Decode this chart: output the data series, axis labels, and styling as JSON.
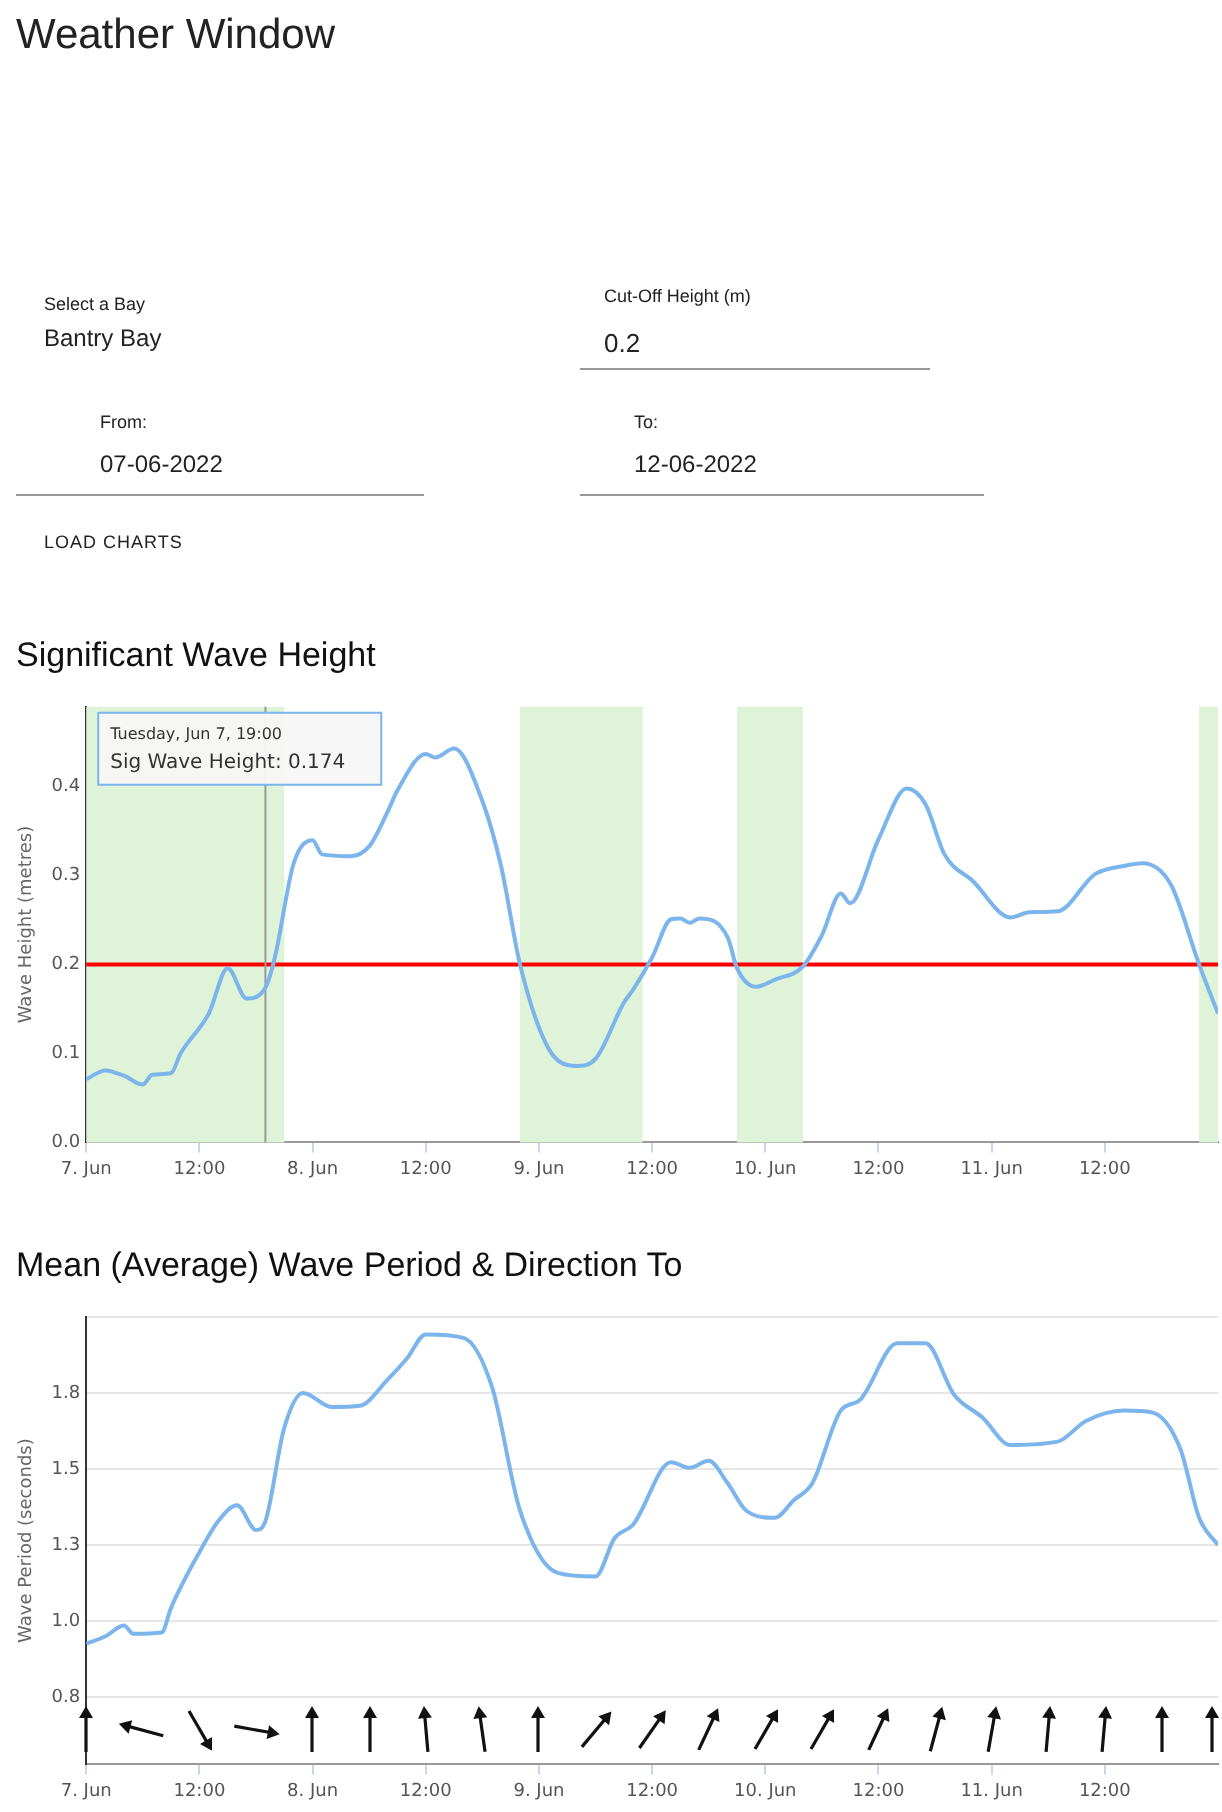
{
  "chart_data": [
    {
      "type": "other",
      "title": "Weather Window",
      "annotations": [
        "Select a Bay",
        "Bantry Bay",
        "Cut-Off Height (m)",
        "0.2",
        "From:",
        "07-06-2022",
        "To:",
        "12-06-2022",
        "LOAD CHARTS"
      ]
    },
    {
      "type": "line",
      "title": "Significant Wave Height",
      "ylabel": "Wave Height (metres)",
      "x": [
        "2022-06-07T00:00",
        "2022-06-07T02:00",
        "2022-06-07T04:00",
        "2022-06-07T06:00",
        "2022-06-07T07:00",
        "2022-06-07T09:00",
        "2022-06-07T10:00",
        "2022-06-07T13:00",
        "2022-06-07T15:00",
        "2022-06-07T17:00",
        "2022-06-07T19:00",
        "2022-06-07T20:00",
        "2022-06-07T22:00",
        "2022-06-08T00:00",
        "2022-06-08T01:00",
        "2022-06-08T04:00",
        "2022-06-08T06:00",
        "2022-06-08T08:00",
        "2022-06-08T09:00",
        "2022-06-08T12:00",
        "2022-06-08T13:00",
        "2022-06-08T15:00",
        "2022-06-08T18:00",
        "2022-06-08T20:00",
        "2022-06-08T22:00",
        "2022-06-09T01:00",
        "2022-06-09T04:00",
        "2022-06-09T06:00",
        "2022-06-09T09:00",
        "2022-06-09T10:00",
        "2022-06-09T12:00",
        "2022-06-09T14:00",
        "2022-06-09T15:00",
        "2022-06-09T16:00",
        "2022-06-09T17:00",
        "2022-06-09T20:00",
        "2022-06-09T21:00",
        "2022-06-09T23:00",
        "2022-06-10T01:00",
        "2022-06-10T04:00",
        "2022-06-10T06:00",
        "2022-06-10T08:00",
        "2022-06-10T09:00",
        "2022-06-10T12:00",
        "2022-06-10T15:00",
        "2022-06-10T17:00",
        "2022-06-10T19:00",
        "2022-06-10T22:00",
        "2022-06-11T02:00",
        "2022-06-11T04:00",
        "2022-06-11T07:00",
        "2022-06-11T11:00",
        "2022-06-11T14:00",
        "2022-06-11T16:00",
        "2022-06-11T19:00",
        "2022-06-11T22:00",
        "2022-06-12T00:00"
      ],
      "series": [
        {
          "color": "#7cb5ec",
          "values": [
            0.071,
            0.081,
            0.075,
            0.065,
            0.076,
            0.078,
            0.1,
            0.145,
            0.196,
            0.162,
            0.174,
            0.208,
            0.314,
            0.34,
            0.324,
            0.322,
            0.333,
            0.373,
            0.396,
            0.437,
            0.433,
            0.443,
            0.384,
            0.31,
            0.2,
            0.106,
            0.086,
            0.094,
            0.157,
            0.172,
            0.208,
            0.251,
            0.252,
            0.247,
            0.252,
            0.231,
            0.196,
            0.175,
            0.183,
            0.198,
            0.233,
            0.28,
            0.269,
            0.341,
            0.398,
            0.38,
            0.324,
            0.294,
            0.253,
            0.259,
            0.26,
            0.302,
            0.311,
            0.314,
            0.29,
            0.2,
            0.145
          ]
        }
      ],
      "xlim": [
        "2022-06-07T00:00",
        "2022-06-12T00:00"
      ],
      "xticks": [
        {
          "value": "2022-06-07",
          "label": "7. Jun"
        },
        {
          "value": "2022-06-07T12:00",
          "label": "12:00"
        },
        {
          "value": "2022-06-08",
          "label": "8. Jun"
        },
        {
          "value": "2022-06-08T12:00",
          "label": "12:00"
        },
        {
          "value": "2022-06-09",
          "label": "9. Jun"
        },
        {
          "value": "2022-06-09T12:00",
          "label": "12:00"
        },
        {
          "value": "2022-06-10",
          "label": "10. Jun"
        },
        {
          "value": "2022-06-10T12:00",
          "label": "12:00"
        },
        {
          "value": "2022-06-11",
          "label": "11. Jun"
        },
        {
          "value": "2022-06-11T12:00",
          "label": "12:00"
        }
      ],
      "ylim": [
        0,
        0.49
      ],
      "yticks": [
        {
          "value": 0,
          "label": "0.0"
        },
        0.1,
        0.2,
        0.3,
        0.4
      ],
      "grid": false,
      "bands": [
        {
          "axis": "x",
          "from": "2022-06-07T00:00",
          "to": "2022-06-07T21:00",
          "color": "#dff3d9"
        },
        {
          "axis": "x",
          "from": "2022-06-08T22:00",
          "to": "2022-06-09T11:00",
          "color": "#dff3d9"
        },
        {
          "axis": "x",
          "from": "2022-06-09T21:00",
          "to": "2022-06-10T04:00",
          "color": "#dff3d9"
        },
        {
          "axis": "x",
          "from": "2022-06-11T22:00",
          "to": "2022-06-12T00:00",
          "color": "#dff3d9"
        }
      ],
      "ref_lines": [
        {
          "axis": "y",
          "value": 0.2,
          "color": "#ff0000"
        },
        {
          "axis": "x",
          "value": "2022-06-07T19:00",
          "color": "#999999"
        }
      ],
      "annotations": [
        "Tuesday, Jun 7, 19:00",
        "Sig Wave Height: 0.174"
      ]
    },
    {
      "type": "line",
      "title": "Mean (Average) Wave Period & Direction To",
      "ylabel": "Wave Period (seconds)",
      "x": [
        "2022-06-07T00:00",
        "2022-06-07T02:00",
        "2022-06-07T04:00",
        "2022-06-07T05:00",
        "2022-06-07T08:00",
        "2022-06-07T09:00",
        "2022-06-07T12:00",
        "2022-06-07T14:00",
        "2022-06-07T16:00",
        "2022-06-07T18:00",
        "2022-06-07T19:00",
        "2022-06-07T21:00",
        "2022-06-07T23:00",
        "2022-06-08T02:00",
        "2022-06-08T05:00",
        "2022-06-08T08:00",
        "2022-06-08T10:00",
        "2022-06-08T12:00",
        "2022-06-08T16:00",
        "2022-06-08T19:00",
        "2022-06-08T22:00",
        "2022-06-09T02:00",
        "2022-06-09T06:00",
        "2022-06-09T08:00",
        "2022-06-09T10:00",
        "2022-06-09T14:00",
        "2022-06-09T16:00",
        "2022-06-09T18:00",
        "2022-06-09T20:00",
        "2022-06-09T22:00",
        "2022-06-10T01:00",
        "2022-06-10T03:00",
        "2022-06-10T05:00",
        "2022-06-10T08:00",
        "2022-06-10T10:00",
        "2022-06-10T14:00",
        "2022-06-10T17:00",
        "2022-06-10T20:00",
        "2022-06-10T23:00",
        "2022-06-11T02:00",
        "2022-06-11T07:00",
        "2022-06-11T10:00",
        "2022-06-11T14:00",
        "2022-06-11T17:00",
        "2022-06-11T20:00",
        "2022-06-11T22:00",
        "2022-06-12T00:00"
      ],
      "series": [
        {
          "color": "#7cb5ec",
          "values": [
            0.977,
            1.0,
            1.036,
            1.009,
            1.013,
            1.095,
            1.277,
            1.379,
            1.431,
            1.35,
            1.379,
            1.686,
            1.8,
            1.754,
            1.758,
            1.845,
            1.913,
            1.992,
            1.981,
            1.822,
            1.413,
            1.209,
            1.197,
            1.322,
            1.368,
            1.572,
            1.554,
            1.577,
            1.504,
            1.413,
            1.39,
            1.447,
            1.504,
            1.742,
            1.776,
            1.963,
            1.963,
            1.795,
            1.72,
            1.629,
            1.64,
            1.708,
            1.742,
            1.736,
            1.617,
            1.39,
            1.3
          ]
        }
      ],
      "xlim": [
        "2022-06-07T00:00",
        "2022-06-12T00:00"
      ],
      "xticks": [
        {
          "value": "2022-06-07",
          "label": "7. Jun"
        },
        {
          "value": "2022-06-07T12:00",
          "label": "12:00"
        },
        {
          "value": "2022-06-08",
          "label": "8. Jun"
        },
        {
          "value": "2022-06-08T12:00",
          "label": "12:00"
        },
        {
          "value": "2022-06-09",
          "label": "9. Jun"
        },
        {
          "value": "2022-06-09T12:00",
          "label": "12:00"
        },
        {
          "value": "2022-06-10",
          "label": "10. Jun"
        },
        {
          "value": "2022-06-10T12:00",
          "label": "12:00"
        },
        {
          "value": "2022-06-11",
          "label": "11. Jun"
        },
        {
          "value": "2022-06-11T12:00",
          "label": "12:00"
        }
      ],
      "ylim": [
        0.58,
        2.05
      ],
      "yticks": [
        0.8,
        {
          "value": 1.05,
          "label": "1.0"
        },
        1.3,
        {
          "value": 1.55,
          "label": "1.5"
        },
        1.8,
        {
          "value": 2.05,
          "label": null
        }
      ],
      "grid": "y"
    }
  ]
}
